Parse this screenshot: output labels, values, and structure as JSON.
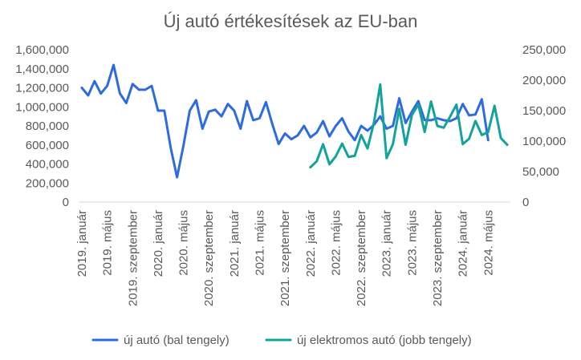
{
  "chart_data": {
    "type": "line",
    "title": "Új autó értékesítések az EU-ban",
    "x_start": "2019-01",
    "x_end": "2024-08",
    "x_tick_labels": [
      "2019. január",
      "2019. május",
      "2019. szeptember",
      "2020. január",
      "2020. május",
      "2020. szeptember",
      "2021. január",
      "2021. május",
      "2021. szeptember",
      "2022. január",
      "2022. május",
      "2022. szeptember",
      "2023. január",
      "2023. május",
      "2023. szeptember",
      "2024. január",
      "2024. május"
    ],
    "y_left": {
      "min": 0,
      "max": 1600000,
      "tick_labels": [
        "0",
        "200,000",
        "400,000",
        "600,000",
        "800,000",
        "1,000,000",
        "1,200,000",
        "1,400,000",
        "1,600,000"
      ]
    },
    "y_right": {
      "min": 0,
      "max": 250000,
      "tick_labels": [
        "0",
        "50,000",
        "100,000",
        "150,000",
        "200,000",
        "250,000"
      ]
    },
    "grid": false,
    "legend_position": "bottom",
    "series": [
      {
        "name": "új autó (bal tengely)",
        "axis": "left",
        "color": "#2E6BE0",
        "start": "2019-01",
        "values": [
          1200000,
          1120000,
          1270000,
          1140000,
          1220000,
          1440000,
          1140000,
          1040000,
          1240000,
          1180000,
          1180000,
          1220000,
          960000,
          960000,
          570000,
          260000,
          590000,
          960000,
          1070000,
          770000,
          950000,
          970000,
          900000,
          1030000,
          960000,
          770000,
          1060000,
          860000,
          880000,
          1050000,
          820000,
          610000,
          720000,
          660000,
          700000,
          800000,
          680000,
          730000,
          850000,
          690000,
          800000,
          880000,
          740000,
          650000,
          800000,
          750000,
          810000,
          900000,
          770000,
          800000,
          1090000,
          830000,
          950000,
          1060000,
          860000,
          860000,
          880000,
          860000,
          850000,
          880000,
          1030000,
          910000,
          920000,
          1080000,
          650000
        ]
      },
      {
        "name": "új elektromos autó (jobb tengely)",
        "axis": "right",
        "color": "#13A39A",
        "start": "2022-01",
        "values": [
          57000,
          67000,
          95000,
          62000,
          75000,
          96000,
          74000,
          76000,
          110000,
          88000,
          130000,
          193000,
          72000,
          95000,
          153000,
          94000,
          143000,
          160000,
          115000,
          165000,
          125000,
          122000,
          140000,
          160000,
          95000,
          104000,
          133000,
          110000,
          115000,
          158000,
          105000,
          94000
        ]
      }
    ]
  }
}
